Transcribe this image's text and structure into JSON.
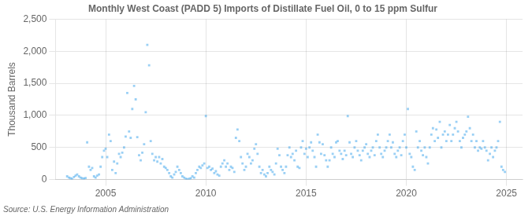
{
  "chart_data": {
    "type": "scatter",
    "title": "Monthly West Coast (PADD 5) Imports of Distillate Fuel Oil, 0 to 15 ppm Sulfur",
    "ylabel": "Thousand Barrels",
    "annotations": [
      "Source: U.S. Energy Information Administration"
    ],
    "marker": "square",
    "grid": true,
    "xlim": [
      2002.5,
      2025.8
    ],
    "xticks": [
      2005,
      2010,
      2015,
      2020,
      2025
    ],
    "ylim": [
      0,
      2500
    ],
    "yticks": [
      0,
      500,
      {
        "value": 1000,
        "label": "1,000"
      },
      {
        "value": 1500,
        "label": "1,500"
      },
      {
        "value": 2000,
        "label": "2,000"
      },
      {
        "value": 2500,
        "label": "2,500"
      }
    ],
    "x": [
      2003.08,
      2003.17,
      2003.25,
      2003.33,
      2003.42,
      2003.5,
      2003.58,
      2003.67,
      2003.75,
      2003.83,
      2003.92,
      2004.0,
      2004.08,
      2004.17,
      2004.25,
      2004.33,
      2004.42,
      2004.5,
      2004.58,
      2004.67,
      2004.75,
      2004.83,
      2004.92,
      2005.0,
      2005.08,
      2005.17,
      2005.25,
      2005.33,
      2005.42,
      2005.5,
      2005.58,
      2005.67,
      2005.75,
      2005.83,
      2005.92,
      2006.0,
      2006.08,
      2006.17,
      2006.25,
      2006.33,
      2006.42,
      2006.5,
      2006.58,
      2006.67,
      2006.75,
      2006.83,
      2006.92,
      2007.0,
      2007.08,
      2007.17,
      2007.25,
      2007.33,
      2007.42,
      2007.5,
      2007.58,
      2007.67,
      2007.75,
      2007.83,
      2007.92,
      2008.0,
      2008.08,
      2008.17,
      2008.25,
      2008.33,
      2008.42,
      2008.5,
      2008.58,
      2008.67,
      2008.75,
      2008.83,
      2008.92,
      2009.0,
      2009.08,
      2009.17,
      2009.25,
      2009.33,
      2009.42,
      2009.5,
      2009.58,
      2009.67,
      2009.75,
      2009.83,
      2009.92,
      2010.0,
      2010.08,
      2010.17,
      2010.25,
      2010.33,
      2010.42,
      2010.5,
      2010.58,
      2010.67,
      2010.75,
      2010.83,
      2010.92,
      2011.0,
      2011.08,
      2011.17,
      2011.25,
      2011.33,
      2011.42,
      2011.5,
      2011.58,
      2011.67,
      2011.75,
      2011.83,
      2011.92,
      2012.0,
      2012.08,
      2012.17,
      2012.25,
      2012.33,
      2012.42,
      2012.5,
      2012.58,
      2012.67,
      2012.75,
      2012.83,
      2012.92,
      2013.0,
      2013.08,
      2013.17,
      2013.25,
      2013.33,
      2013.42,
      2013.5,
      2013.58,
      2013.67,
      2013.75,
      2013.83,
      2013.92,
      2014.0,
      2014.08,
      2014.17,
      2014.25,
      2014.33,
      2014.42,
      2014.5,
      2014.58,
      2014.67,
      2014.75,
      2014.83,
      2014.92,
      2015.0,
      2015.08,
      2015.17,
      2015.25,
      2015.33,
      2015.42,
      2015.5,
      2015.58,
      2015.67,
      2015.75,
      2015.83,
      2015.92,
      2016.0,
      2016.08,
      2016.17,
      2016.25,
      2016.33,
      2016.42,
      2016.5,
      2016.58,
      2016.67,
      2016.75,
      2016.83,
      2016.92,
      2017.0,
      2017.08,
      2017.17,
      2017.25,
      2017.33,
      2017.42,
      2017.5,
      2017.58,
      2017.67,
      2017.75,
      2017.83,
      2017.92,
      2018.0,
      2018.08,
      2018.17,
      2018.25,
      2018.33,
      2018.42,
      2018.5,
      2018.58,
      2018.67,
      2018.75,
      2018.83,
      2018.92,
      2019.0,
      2019.08,
      2019.17,
      2019.25,
      2019.33,
      2019.42,
      2019.5,
      2019.58,
      2019.67,
      2019.75,
      2019.83,
      2019.92,
      2020.0,
      2020.08,
      2020.17,
      2020.25,
      2020.33,
      2020.42,
      2020.5,
      2020.58,
      2020.67,
      2020.75,
      2020.83,
      2020.92,
      2021.0,
      2021.08,
      2021.17,
      2021.25,
      2021.33,
      2021.42,
      2021.5,
      2021.58,
      2021.67,
      2021.75,
      2021.83,
      2021.92,
      2022.0,
      2022.08,
      2022.17,
      2022.25,
      2022.33,
      2022.42,
      2022.5,
      2022.58,
      2022.67,
      2022.75,
      2022.83,
      2022.92,
      2023.0,
      2023.08,
      2023.17,
      2023.25,
      2023.33,
      2023.42,
      2023.5,
      2023.58,
      2023.67,
      2023.75,
      2023.83,
      2023.92,
      2024.0,
      2024.08,
      2024.17,
      2024.25,
      2024.33,
      2024.42,
      2024.5,
      2024.58,
      2024.67,
      2024.75,
      2024.83,
      2024.92
    ],
    "values": [
      50,
      30,
      20,
      10,
      40,
      60,
      80,
      50,
      30,
      20,
      15,
      25,
      580,
      200,
      150,
      180,
      50,
      30,
      60,
      80,
      200,
      350,
      450,
      480,
      350,
      700,
      600,
      150,
      280,
      100,
      250,
      400,
      350,
      420,
      500,
      670,
      1350,
      750,
      650,
      1100,
      1460,
      1250,
      660,
      380,
      300,
      420,
      550,
      1050,
      2100,
      1780,
      600,
      400,
      300,
      350,
      280,
      350,
      250,
      320,
      200,
      180,
      150,
      100,
      50,
      30,
      80,
      120,
      200,
      150,
      100,
      50,
      30,
      10,
      5,
      10,
      20,
      50,
      30,
      100,
      150,
      200,
      180,
      220,
      250,
      990,
      180,
      200,
      150,
      170,
      100,
      130,
      80,
      60,
      200,
      250,
      300,
      200,
      250,
      150,
      200,
      180,
      120,
      650,
      780,
      600,
      350,
      250,
      150,
      200,
      400,
      350,
      250,
      300,
      480,
      550,
      400,
      200,
      100,
      150,
      80,
      50,
      100,
      200,
      150,
      120,
      80,
      250,
      480,
      380,
      200,
      150,
      100,
      200,
      380,
      500,
      350,
      400,
      300,
      450,
      200,
      180,
      500,
      600,
      400,
      480,
      350,
      500,
      580,
      450,
      350,
      200,
      700,
      580,
      400,
      550,
      380,
      300,
      200,
      300,
      500,
      400,
      350,
      580,
      600,
      450,
      400,
      320,
      450,
      380,
      990,
      580,
      400,
      350,
      500,
      600,
      450,
      380,
      300,
      450,
      500,
      550,
      400,
      350,
      450,
      500,
      380,
      600,
      700,
      500,
      400,
      350,
      450,
      500,
      600,
      700,
      500,
      580,
      400,
      350,
      450,
      500,
      380,
      600,
      700,
      500,
      1100,
      400,
      350,
      200,
      150,
      750,
      500,
      600,
      450,
      380,
      500,
      350,
      250,
      500,
      700,
      800,
      600,
      780,
      650,
      900,
      500,
      700,
      750,
      600,
      700,
      850,
      600,
      700,
      800,
      900,
      750,
      600,
      500,
      650,
      700,
      750,
      980,
      800,
      600,
      700,
      500,
      600,
      450,
      500,
      480,
      600,
      500,
      450,
      300,
      400,
      500,
      350,
      450,
      500,
      600,
      900,
      200,
      150,
      120
    ]
  }
}
